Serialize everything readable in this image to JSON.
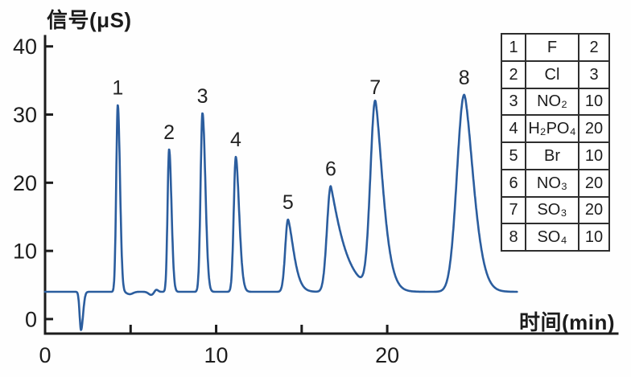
{
  "figure": {
    "ylabel": "信号(μS)",
    "xlabel": "时间(min)"
  },
  "chart_data": {
    "type": "line",
    "ylabel": "信号(μS)",
    "xlabel": "时间(min)",
    "y_ticks": [
      0,
      10,
      20,
      30,
      40
    ],
    "x_ticks_labeled": [
      0,
      10,
      20
    ],
    "x_ticks_minor": [
      5,
      15
    ],
    "xlim": [
      0,
      33.45
    ],
    "ylim": [
      -2.13,
      41.5
    ],
    "grid": "off",
    "legend_position": "top-right",
    "baseline_uS": 4.0,
    "trace_start_min": 0,
    "trace_end_min": 27.6,
    "line_color": "#2b5d9e",
    "peaks": [
      {
        "label": "1",
        "t_min": 4.25,
        "apex_uS": 31.4,
        "sl": 0.09,
        "sr": 0.13,
        "pr": 2
      },
      {
        "label": "2",
        "t_min": 7.25,
        "apex_uS": 24.9,
        "sl": 0.09,
        "sr": 0.14,
        "pr": 2
      },
      {
        "label": "3",
        "t_min": 9.2,
        "apex_uS": 30.2,
        "sl": 0.11,
        "sr": 0.17,
        "pr": 2
      },
      {
        "label": "4",
        "t_min": 11.15,
        "apex_uS": 23.8,
        "sl": 0.12,
        "sr": 0.19,
        "pr": 1.8
      },
      {
        "label": "5",
        "t_min": 14.2,
        "apex_uS": 14.6,
        "sl": 0.16,
        "sr": 0.3,
        "pr": 1.5
      },
      {
        "label": "6",
        "t_min": 16.7,
        "apex_uS": 19.5,
        "sl": 0.22,
        "sr": 0.5,
        "pr": 1.15
      },
      {
        "label": "7",
        "t_min": 19.3,
        "apex_uS": 31.5,
        "sl": 0.28,
        "sr": 0.4,
        "pr": 1.5
      },
      {
        "label": "8",
        "t_min": 24.5,
        "apex_uS": 32.9,
        "sl": 0.42,
        "sr": 0.5,
        "pr": 1.6
      }
    ],
    "injection_dip": {
      "t_min": 2.1,
      "min_uS": -1.6,
      "sl": 0.08,
      "sr": 0.12
    },
    "baseline_wiggles": [
      {
        "t_min": 4.95,
        "amp_uS": -0.35,
        "s": 0.18
      },
      {
        "t_min": 6.2,
        "amp_uS": -0.45,
        "s": 0.15
      },
      {
        "t_min": 6.5,
        "amp_uS": 0.35,
        "s": 0.1
      }
    ]
  },
  "legend_table": {
    "rows": [
      {
        "no": "1",
        "ion": "F",
        "conc": "2"
      },
      {
        "no": "2",
        "ion": "Cl",
        "conc": "3"
      },
      {
        "no": "3",
        "ion": "NO₂",
        "conc": "10"
      },
      {
        "no": "4",
        "ion": "H₂PO₄",
        "conc": "20"
      },
      {
        "no": "5",
        "ion": "Br",
        "conc": "10"
      },
      {
        "no": "6",
        "ion": "NO₃",
        "conc": "20"
      },
      {
        "no": "7",
        "ion": "SO₃",
        "conc": "20"
      },
      {
        "no": "8",
        "ion": "SO₄",
        "conc": "10"
      }
    ]
  },
  "colors": {
    "trace": "#2b5d9e",
    "axis": "#1c1c1c",
    "text": "#1c1c1c",
    "table_border": "#2e2e2e",
    "background": "#ffffff"
  }
}
